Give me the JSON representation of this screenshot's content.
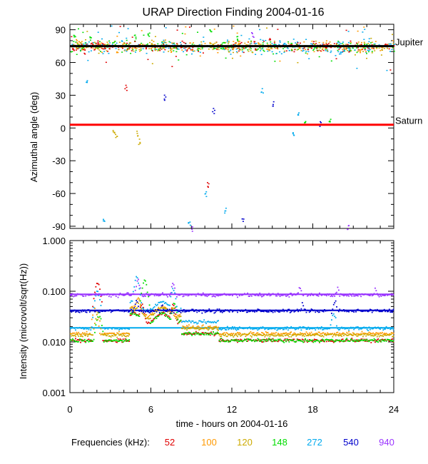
{
  "chart_data": [
    {
      "type": "scatter",
      "title": "URAP Direction Finding  2004-01-16",
      "ylabel": "Azimuthal angle (deg)",
      "xlim": [
        0,
        24
      ],
      "ylim": [
        -92,
        95
      ],
      "xticks": [
        0,
        6,
        12,
        18,
        24
      ],
      "yticks": [
        -90,
        -60,
        -30,
        0,
        30,
        60,
        90
      ],
      "grid": false,
      "reference_lines": [
        {
          "name": "Jupiter",
          "y": 75,
          "color": "#000000"
        },
        {
          "name": "Saturn",
          "y": 3,
          "color": "#ff0000"
        }
      ],
      "series": [
        {
          "name": "52",
          "color": "#e00000",
          "x": [
            0.2,
            1.0,
            2.0,
            4.1,
            8.2,
            10.2,
            14.8,
            19.0
          ],
          "y": [
            73,
            70,
            78,
            37,
            76,
            -52,
            80,
            75
          ]
        },
        {
          "name": "100",
          "color": "#ff9900",
          "x": [
            0.5,
            3.5,
            7.5,
            12.5,
            17.0,
            21.5
          ],
          "y": [
            80,
            72,
            71,
            78,
            73,
            70
          ]
        },
        {
          "name": "120",
          "color": "#ccaa00",
          "x": [
            3.2,
            3.4,
            5.0,
            5.1,
            6.0,
            11.0
          ],
          "y": [
            -3,
            -8,
            -5,
            -12,
            76,
            74
          ]
        },
        {
          "name": "148",
          "color": "#00dd00",
          "x": [
            0.3,
            1.5,
            4.8,
            5.8,
            10.4,
            12.4,
            17.4,
            19.2
          ],
          "y": [
            85,
            82,
            84,
            86,
            88,
            83,
            5,
            8
          ]
        },
        {
          "name": "272",
          "color": "#00aaee",
          "x": [
            1.2,
            2.5,
            8.8,
            10.0,
            11.5,
            14.2,
            16.5,
            16.9,
            20.0
          ],
          "y": [
            44,
            -83,
            -86,
            -60,
            -75,
            35,
            -5,
            12,
            68
          ]
        },
        {
          "name": "540",
          "color": "#0000cc",
          "x": [
            7.0,
            10.6,
            12.8,
            15.0,
            18.5
          ],
          "y": [
            28,
            16,
            -83,
            22,
            4
          ]
        },
        {
          "name": "940",
          "color": "#9933ff",
          "x": [
            9.0,
            13.5,
            20.6
          ],
          "y": [
            -92,
            86,
            -90
          ]
        }
      ]
    },
    {
      "type": "scatter",
      "ylabel": "Intensity (microvolt/sqrt(Hz))",
      "xlabel": "time - hours on 2004-01-16",
      "xlim": [
        0,
        24
      ],
      "ylim": [
        0.001,
        1.0
      ],
      "y_scale": "log",
      "xticks": [
        0,
        6,
        12,
        18,
        24
      ],
      "yticks": [
        0.001,
        0.01,
        0.1,
        1.0
      ],
      "ytick_labels": [
        "0.001",
        "0.010",
        "0.100",
        "1.000"
      ],
      "grid": false,
      "reference_lines": [
        {
          "y": 0.087,
          "color": "#9933ff"
        },
        {
          "y": 0.042,
          "color": "#0000cc"
        },
        {
          "y": 0.019,
          "color": "#00aaee"
        }
      ],
      "series": [
        {
          "name": "52",
          "color": "#e00000",
          "baseline": 0.011,
          "bursts": [
            [
              2.0,
              0.17
            ],
            [
              5.3,
              0.06
            ],
            [
              7.6,
              0.06
            ]
          ]
        },
        {
          "name": "100",
          "color": "#ff9900",
          "baseline": 0.015,
          "bursts": [
            [
              1.8,
              0.05
            ],
            [
              5.0,
              0.08
            ],
            [
              7.5,
              0.05
            ]
          ]
        },
        {
          "name": "120",
          "color": "#ccaa00",
          "baseline": 0.014,
          "bursts": [
            [
              2.0,
              0.04
            ],
            [
              5.1,
              0.07
            ],
            [
              7.6,
              0.05
            ]
          ]
        },
        {
          "name": "148",
          "color": "#00dd00",
          "baseline": 0.011,
          "bursts": [
            [
              2.1,
              0.04
            ],
            [
              5.5,
              0.18
            ],
            [
              7.7,
              0.06
            ]
          ]
        },
        {
          "name": "272",
          "color": "#00aaee",
          "baseline": 0.019,
          "bursts": [
            [
              2.0,
              0.11
            ],
            [
              4.9,
              0.2
            ],
            [
              7.6,
              0.12
            ],
            [
              19.5,
              0.04
            ]
          ]
        },
        {
          "name": "540",
          "color": "#0000cc",
          "baseline": 0.042,
          "bursts": [
            [
              4.9,
              0.07
            ],
            [
              6.8,
              0.06
            ],
            [
              17.2,
              0.06
            ],
            [
              19.6,
              0.07
            ]
          ]
        },
        {
          "name": "940",
          "color": "#9933ff",
          "baseline": 0.087,
          "bursts": [
            [
              5.0,
              0.18
            ],
            [
              7.6,
              0.15
            ],
            [
              17.0,
              0.13
            ],
            [
              19.8,
              0.12
            ],
            [
              22.6,
              0.12
            ]
          ]
        }
      ]
    }
  ],
  "legend": {
    "label": "Frequencies (kHz):",
    "placement": "bottom",
    "items": [
      {
        "text": "52",
        "color": "#e00000"
      },
      {
        "text": "100",
        "color": "#ff9900"
      },
      {
        "text": "120",
        "color": "#ccaa00"
      },
      {
        "text": "148",
        "color": "#00dd00"
      },
      {
        "text": "272",
        "color": "#00aaee"
      },
      {
        "text": "540",
        "color": "#0000cc"
      },
      {
        "text": "940",
        "color": "#9933ff"
      }
    ]
  }
}
